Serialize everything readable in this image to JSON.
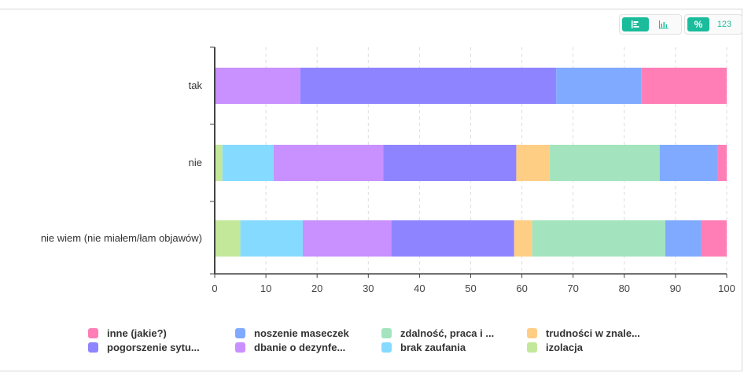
{
  "header_fragment": "",
  "toolbar": {
    "orientation_group": {
      "left_icon": "horizontal-bars-icon",
      "right_icon": "vertical-bars-icon"
    },
    "format_group": {
      "percent_label": "%",
      "count_label": "123"
    }
  },
  "colors": {
    "inne": "#ff7eb6",
    "noszenie": "#80aaff",
    "zdalnosc": "#a3e4be",
    "trudnosci": "#ffce85",
    "pogorszenie": "#8f84ff",
    "dbanie": "#c990ff",
    "brak": "#85dbff",
    "izolacja": "#c3e89a",
    "axis": "#444444",
    "grid": "#dddddd",
    "accent": "#1abc9c"
  },
  "chart_data": {
    "type": "bar",
    "orientation": "horizontal",
    "stacked": true,
    "categories": [
      "tak",
      "nie",
      "nie wiem (nie miałem/łam objawów)"
    ],
    "xlim": [
      0,
      100
    ],
    "xticks": [
      "0",
      "10",
      "20",
      "30",
      "40",
      "50",
      "60",
      "70",
      "80",
      "90",
      "100"
    ],
    "grid": "vertical dashed",
    "legend_position": "bottom",
    "series": [
      {
        "name": "izolacja",
        "legend": "izolacja",
        "color_key": "izolacja",
        "values": [
          0,
          1.5,
          5
        ]
      },
      {
        "name": "brak zaufania",
        "legend": "brak zaufania",
        "color_key": "brak",
        "values": [
          0,
          10,
          12.2
        ]
      },
      {
        "name": "dbanie o dezynfe...",
        "legend": "dbanie o dezynfe...",
        "color_key": "dbanie",
        "values": [
          16.7,
          21.4,
          17.3
        ]
      },
      {
        "name": "pogorszenie sytu...",
        "legend": "pogorszenie sytu...",
        "color_key": "pogorszenie",
        "values": [
          50,
          26,
          24
        ]
      },
      {
        "name": "trudności w znale...",
        "legend": "trudności w znale...",
        "color_key": "trudnosci",
        "values": [
          0,
          6.5,
          3.5
        ]
      },
      {
        "name": "zdalność, praca i ...",
        "legend": "zdalność, praca i ...",
        "color_key": "zdalnosc",
        "values": [
          0,
          21.5,
          26
        ]
      },
      {
        "name": "noszenie maseczek",
        "legend": "noszenie maseczek",
        "color_key": "noszenie",
        "values": [
          16.6,
          11.4,
          7
        ]
      },
      {
        "name": "inne (jakie?)",
        "legend": "inne (jakie?)",
        "color_key": "inne",
        "values": [
          16.7,
          1.7,
          5
        ]
      }
    ],
    "legend_order": [
      "inne (jakie?)",
      "noszenie maseczek",
      "zdalność, praca i ...",
      "trudności w znale...",
      "pogorszenie sytu...",
      "dbanie o dezynfe...",
      "brak zaufania",
      "izolacja"
    ]
  }
}
